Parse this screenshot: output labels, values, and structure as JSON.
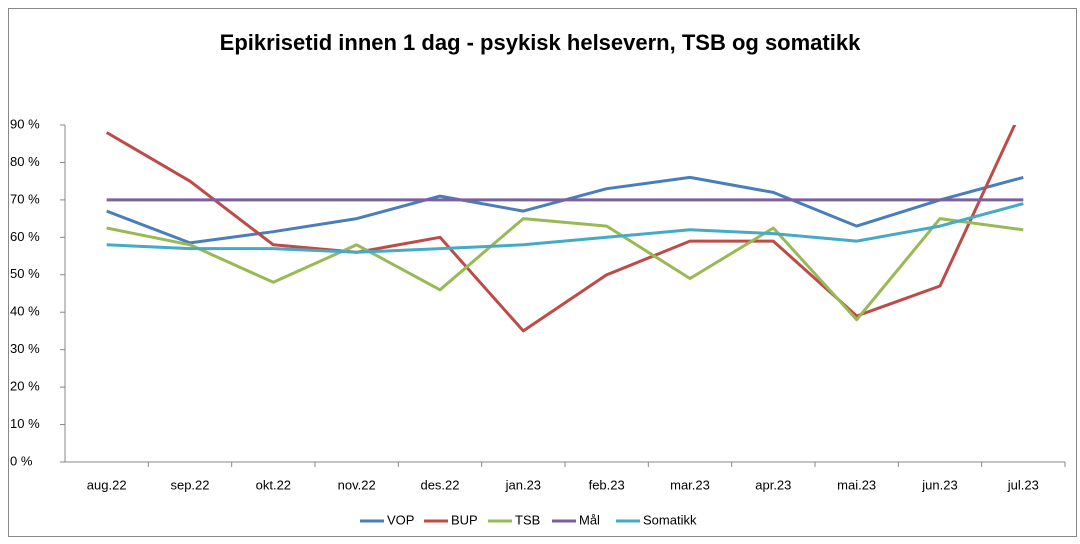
{
  "chart_data": {
    "type": "line",
    "title": "Epikrisetid innen 1 dag - psykisk helsevern, TSB og somatikk",
    "categories": [
      "aug.22",
      "sep.22",
      "okt.22",
      "nov.22",
      "des.22",
      "jan.23",
      "feb.23",
      "mar.23",
      "apr.23",
      "mai.23",
      "jun.23",
      "jul.23"
    ],
    "series": [
      {
        "name": "VOP",
        "color": "#4a7ebb",
        "values": [
          67,
          58.5,
          61.5,
          65,
          71,
          67,
          73,
          76,
          72,
          63,
          70,
          76
        ]
      },
      {
        "name": "BUP",
        "color": "#be4b48",
        "values": [
          88,
          75,
          58,
          56,
          60,
          35,
          50,
          59,
          59,
          39,
          47,
          95
        ]
      },
      {
        "name": "TSB",
        "color": "#98b954",
        "values": [
          62.5,
          58,
          48,
          58,
          46,
          65,
          63,
          49,
          62.5,
          38,
          65,
          62
        ]
      },
      {
        "name": "Mål",
        "color": "#7d5fa0",
        "values": [
          70,
          70,
          70,
          70,
          70,
          70,
          70,
          70,
          70,
          70,
          70,
          70
        ]
      },
      {
        "name": "Somatikk",
        "color": "#46aac5",
        "values": [
          58,
          57,
          57,
          56,
          57,
          58,
          60,
          62,
          61,
          59,
          63,
          69
        ]
      }
    ],
    "ylim": [
      0,
      90
    ],
    "yticks": [
      {
        "value": 0,
        "label": "0 %"
      },
      {
        "value": 10,
        "label": "10 %"
      },
      {
        "value": 20,
        "label": "20 %"
      },
      {
        "value": 30,
        "label": "30 %"
      },
      {
        "value": 40,
        "label": "40 %"
      },
      {
        "value": 50,
        "label": "50 %"
      },
      {
        "value": 60,
        "label": "60 %"
      },
      {
        "value": 70,
        "label": "70 %"
      },
      {
        "value": 80,
        "label": "80 %"
      },
      {
        "value": 90,
        "label": "90 %"
      }
    ],
    "legend": "bottom"
  }
}
